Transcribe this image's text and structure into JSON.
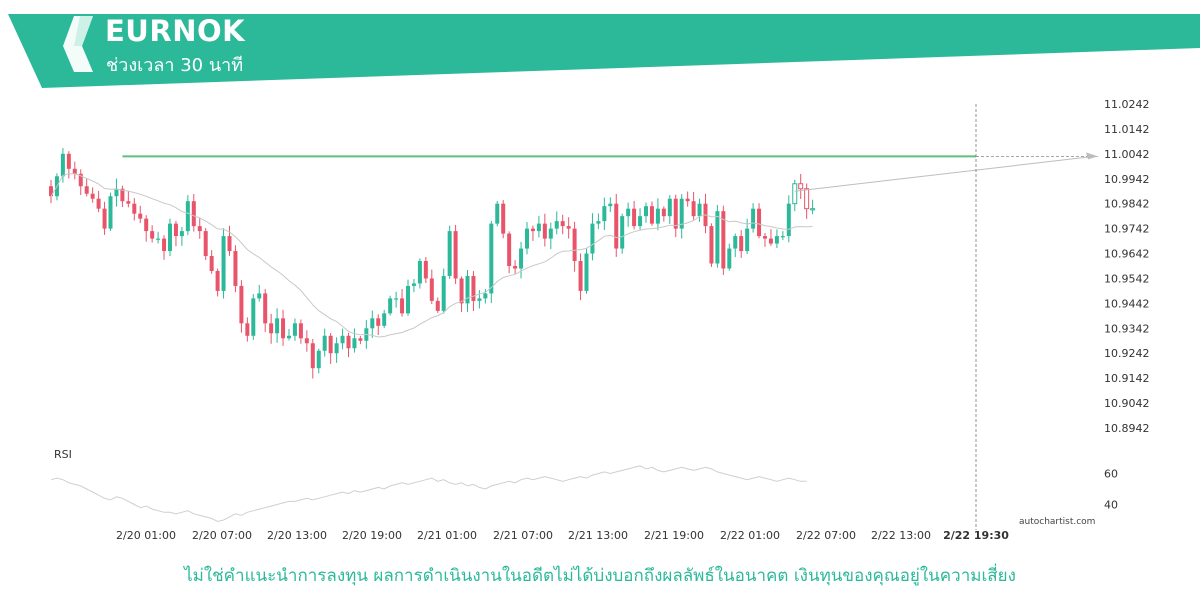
{
  "header": {
    "symbol": "EURNOK",
    "timeframe": "ช่วงเวลา 30 นาที",
    "brand_color": "#2bb99a"
  },
  "disclaimer": "ไม่ใช่คำแนะนำการลงทุน ผลการดำเนินงานในอดีตไม่ได้บ่งบอกถึงผลลัพธ์ในอนาคต เงินทุนของคุณอยู่ในความเสี่ยง",
  "watermark": "autochartist.com",
  "chart_data": {
    "type": "candlestick",
    "price_axis_ticks": [
      "11.0242",
      "11.0142",
      "11.0042",
      "10.9942",
      "10.9842",
      "10.9742",
      "10.9642",
      "10.9542",
      "10.9442",
      "10.9342",
      "10.9242",
      "10.9142",
      "10.9042",
      "10.8942"
    ],
    "ylim": [
      10.8942,
      11.0242
    ],
    "time_axis_ticks": [
      "2/20 01:00",
      "2/20 07:00",
      "2/20 13:00",
      "2/20 19:00",
      "2/21 01:00",
      "2/21 07:00",
      "2/21 13:00",
      "2/21 19:00",
      "2/22 01:00",
      "2/22 07:00",
      "2/22 13:00",
      "2/22 19:30"
    ],
    "highlighted_time": "2/22 19:30",
    "resistance_level": 11.0032,
    "colors": {
      "up": "#2bb99a",
      "down": "#e8546a",
      "resistance": "#5fbf7f",
      "ma": "#c8c8c8",
      "forecast": "#bdbdbd"
    },
    "closes": [
      10.9872,
      10.9952,
      11.0042,
      10.9982,
      10.9962,
      10.9912,
      10.9882,
      10.9862,
      10.9822,
      10.9742,
      10.9872,
      10.9902,
      10.9852,
      10.9842,
      10.9802,
      10.9782,
      10.9732,
      10.9702,
      10.9702,
      10.9652,
      10.9762,
      10.9712,
      10.9732,
      10.9852,
      10.9752,
      10.9732,
      10.9632,
      10.9572,
      10.9492,
      10.9712,
      10.9652,
      10.9512,
      10.9362,
      10.9312,
      10.9462,
      10.9482,
      10.9362,
      10.9322,
      10.9382,
      10.9302,
      10.9312,
      10.9362,
      10.9302,
      10.9282,
      10.9182,
      10.9252,
      10.9312,
      10.9242,
      10.9282,
      10.9312,
      10.9262,
      10.9302,
      10.9292,
      10.9342,
      10.9382,
      10.9352,
      10.9402,
      10.9462,
      10.9462,
      10.9402,
      10.9512,
      10.9522,
      10.9612,
      10.9542,
      10.9452,
      10.9412,
      10.9552,
      10.9732,
      10.9542,
      10.9442,
      10.9552,
      10.9452,
      10.9462,
      10.9482,
      10.9762,
      10.9842,
      10.9722,
      10.9592,
      10.9582,
      10.9662,
      10.9742,
      10.9732,
      10.9762,
      10.9702,
      10.9742,
      10.9772,
      10.9752,
      10.9742,
      10.9612,
      10.9492,
      10.9642,
      10.9762,
      10.9772,
      10.9832,
      10.9842,
      10.9662,
      10.9792,
      10.9822,
      10.9752,
      10.9792,
      10.9832,
      10.9762,
      10.9822,
      10.9792,
      10.9862,
      10.9742,
      10.9862,
      10.9852,
      10.9792,
      10.9842,
      10.9752,
      10.9602,
      10.9812,
      10.9582,
      10.9662,
      10.9712,
      10.9652,
      10.9742,
      10.9822,
      10.9712,
      10.9702,
      10.9682,
      10.9712,
      10.9712,
      10.9842,
      10.9922,
      10.9902,
      10.9822,
      10.9822
    ],
    "ma_period": 20,
    "rsi": {
      "label": "RSI",
      "ticks": [
        "60",
        "40"
      ],
      "ylim": [
        30,
        70
      ],
      "values": [
        56,
        57,
        56,
        54,
        53,
        52,
        50,
        48,
        46,
        44,
        43,
        45,
        44,
        42,
        40,
        38,
        39,
        37,
        36,
        35,
        35,
        34,
        35,
        36,
        34,
        33,
        32,
        31,
        29,
        30,
        32,
        34,
        33,
        35,
        36,
        37,
        38,
        39,
        40,
        41,
        42,
        42,
        43,
        44,
        43,
        44,
        45,
        46,
        47,
        48,
        47,
        49,
        48,
        49,
        50,
        51,
        50,
        52,
        53,
        54,
        53,
        54,
        55,
        56,
        57,
        55,
        56,
        54,
        53,
        54,
        52,
        53,
        51,
        50,
        52,
        53,
        54,
        55,
        54,
        56,
        57,
        56,
        57,
        58,
        57,
        56,
        55,
        56,
        57,
        58,
        57,
        59,
        60,
        61,
        60,
        61,
        62,
        63,
        64,
        65,
        63,
        64,
        62,
        61,
        62,
        63,
        64,
        63,
        62,
        63,
        64,
        63,
        61,
        60,
        59,
        58,
        57,
        56,
        57,
        58,
        57,
        56,
        55,
        56,
        57,
        56,
        55,
        55
      ]
    }
  }
}
